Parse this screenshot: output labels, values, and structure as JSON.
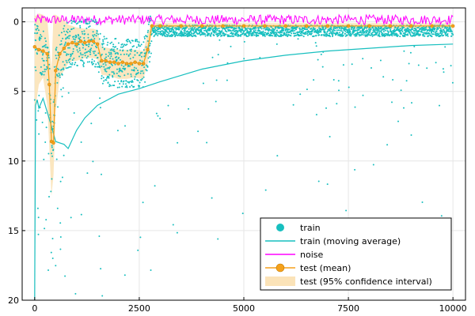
{
  "chart_data": {
    "type": "scatter",
    "title": "",
    "xlabel": "",
    "ylabel": "",
    "xlim": [
      -300,
      10300
    ],
    "ylim": [
      -20,
      1
    ],
    "x_ticks": [
      0,
      2500,
      5000,
      7500,
      10000
    ],
    "x_tick_labels": [
      "0",
      "2500",
      "5000",
      "7500",
      "10000"
    ],
    "y_ticks": [
      0,
      -5,
      -10,
      -15,
      -20
    ],
    "y_tick_labels": [
      "0",
      "5",
      "10",
      "15",
      "20"
    ],
    "grid": true,
    "legend_position": "bottom-right",
    "colors": {
      "train": "#17bfbf",
      "train_ma": "#17bfbf",
      "noise": "#ff00ff",
      "test": "#f5a11b",
      "test_ci": "#fbe3b8"
    },
    "series": [
      {
        "name": "train",
        "kind": "scatter",
        "description_values": "many points, mostly between 0 and -3, sparse outliers down to -20"
      },
      {
        "name": "train (moving average)",
        "kind": "line",
        "x": [
          0,
          20,
          60,
          100,
          200,
          300,
          400,
          500,
          600,
          700,
          800,
          1000,
          1200,
          1500,
          2000,
          2500,
          3000,
          4000,
          5000,
          6000,
          7000,
          8000,
          9000,
          10000
        ],
        "y": [
          -20,
          -6.0,
          -5.6,
          -6.2,
          -5.5,
          -6.5,
          -7.5,
          -8.6,
          -8.7,
          -8.8,
          -9.1,
          -7.8,
          -6.9,
          -6.0,
          -5.2,
          -4.8,
          -4.3,
          -3.4,
          -2.8,
          -2.4,
          -2.1,
          -1.9,
          -1.7,
          -1.6
        ]
      },
      {
        "name": "noise",
        "kind": "line",
        "description_values": "oscillating tightly around 0 (between +0.5 and -0.2)"
      },
      {
        "name": "test (mean)",
        "kind": "line_markers",
        "x": [
          0,
          100,
          200,
          300,
          350,
          400,
          450,
          500,
          600,
          700,
          800,
          900,
          1000,
          1100,
          1200,
          1300,
          1400,
          1500,
          1600,
          1700,
          1800,
          1900,
          2000,
          2100,
          2200,
          2300,
          2400,
          2500,
          2600,
          2700,
          2800,
          3000,
          3500,
          4000,
          4500,
          5000,
          5500,
          6000,
          6500,
          7000,
          7500,
          8000,
          8500,
          9000,
          9500,
          10000
        ],
        "y": [
          -1.8,
          -2.0,
          -2.1,
          -2.3,
          -4.5,
          -8.6,
          -8.7,
          -3.5,
          -2.3,
          -1.9,
          -1.6,
          -1.5,
          -1.6,
          -1.4,
          -1.5,
          -1.4,
          -1.4,
          -1.6,
          -2.8,
          -2.8,
          -2.9,
          -2.9,
          -3.0,
          -2.9,
          -3.0,
          -3.0,
          -2.9,
          -3.0,
          -3.0,
          -2.0,
          -0.3,
          -0.3,
          -0.3,
          -0.3,
          -0.3,
          -0.3,
          -0.3,
          -0.3,
          -0.3,
          -0.3,
          -0.3,
          -0.3,
          -0.3,
          -0.3,
          -0.3,
          -0.3
        ]
      },
      {
        "name": "test (95% confidence interval)",
        "kind": "band",
        "x": [
          0,
          100,
          200,
          300,
          350,
          400,
          450,
          500,
          600,
          700,
          800,
          900,
          1000,
          1200,
          1400,
          1500,
          1600,
          1800,
          2000,
          2200,
          2400,
          2600,
          2700,
          2800,
          3000,
          5000,
          7500,
          10000
        ],
        "upper": [
          0.4,
          0.6,
          0.5,
          0.2,
          -1.5,
          -3.5,
          0.5,
          0.5,
          0.3,
          0.1,
          -0.2,
          -0.3,
          -0.4,
          -0.5,
          -0.5,
          -0.6,
          -1.8,
          -1.9,
          -2.0,
          -2.0,
          -2.0,
          -2.1,
          -0.8,
          -0.1,
          -0.1,
          -0.1,
          -0.1,
          -0.1
        ],
        "lower": [
          -6.5,
          -4.5,
          -4.0,
          -6.0,
          -9.0,
          -12.5,
          -11.0,
          -6.5,
          -4.0,
          -3.5,
          -3.0,
          -2.8,
          -2.8,
          -2.6,
          -2.6,
          -2.7,
          -3.8,
          -3.9,
          -4.1,
          -4.1,
          -4.0,
          -4.1,
          -3.0,
          -0.6,
          -0.5,
          -0.5,
          -0.5,
          -0.5
        ]
      }
    ],
    "legend": [
      {
        "label": "train",
        "kind": "marker",
        "color": "#17bfbf"
      },
      {
        "label": "train (moving average)",
        "kind": "line",
        "color": "#17bfbf"
      },
      {
        "label": "noise",
        "kind": "line",
        "color": "#ff00ff"
      },
      {
        "label": "test (mean)",
        "kind": "line_marker",
        "color": "#f5a11b"
      },
      {
        "label": "test (95% confidence interval)",
        "kind": "band",
        "color": "#fbe3b8"
      }
    ]
  }
}
